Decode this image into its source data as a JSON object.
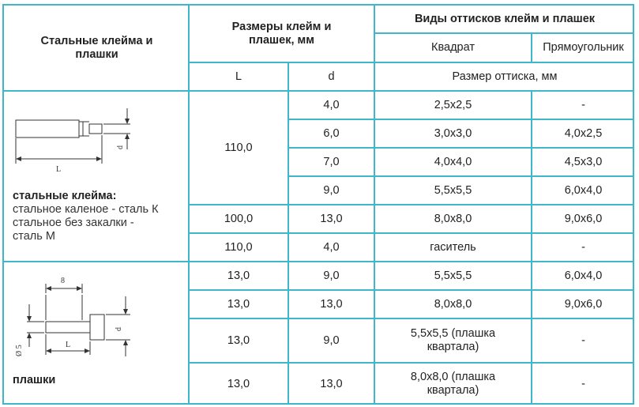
{
  "header": {
    "stamps_title": "Стальные клейма и плашки",
    "sizes_title": "Размеры клейм и плашек, мм",
    "types_title": "Виды оттисков клейм и плашек",
    "col_square": "Квадрат",
    "col_rect": "Прямоугольник",
    "col_L": "L",
    "col_d": "d",
    "imprint_size": "Размер оттиска, мм"
  },
  "stamps": {
    "title": "стальные клейма:",
    "lines": [
      "стальное каленое - сталь К",
      "стальное без закалки -",
      "сталь М"
    ],
    "drawing_labels": {
      "L": "L",
      "d": "d"
    }
  },
  "plates": {
    "title": "плашки",
    "drawing_labels": {
      "eight": "8",
      "L": "L",
      "d": "d",
      "dia": "Ø 5"
    }
  },
  "rows": [
    {
      "L": "",
      "d": "4,0",
      "square": "2,5x2,5",
      "rect": "-"
    },
    {
      "L": "",
      "d": "6,0",
      "square": "3,0x3,0",
      "rect": "4,0x2,5"
    },
    {
      "L": "",
      "d": "7,0",
      "square": "4,0x4,0",
      "rect": "4,5x3,0"
    },
    {
      "L": "",
      "d": "9,0",
      "square": "5,5x5,5",
      "rect": "6,0x4,0"
    },
    {
      "L": "100,0",
      "d": "13,0",
      "square": "8,0x8,0",
      "rect": "9,0x6,0"
    },
    {
      "L": "110,0",
      "d": "4,0",
      "square": "гаситель",
      "rect": "-"
    },
    {
      "L": "13,0",
      "d": "9,0",
      "square": "5,5x5,5",
      "rect": "6,0x4,0"
    },
    {
      "L": "13,0",
      "d": "13,0",
      "square": "8,0x8,0",
      "rect": "9,0x6,0"
    },
    {
      "L": "13,0",
      "d": "9,0",
      "square": "5,5x5,5 (плашка квартала)",
      "rect": "-"
    },
    {
      "L": "13,0",
      "d": "13,0",
      "square": "8,0x8,0 (плашка квартала)",
      "rect": "-"
    }
  ],
  "merged_L_first": "110,0",
  "colors": {
    "border": "#3fb7cb",
    "text": "#222222"
  }
}
